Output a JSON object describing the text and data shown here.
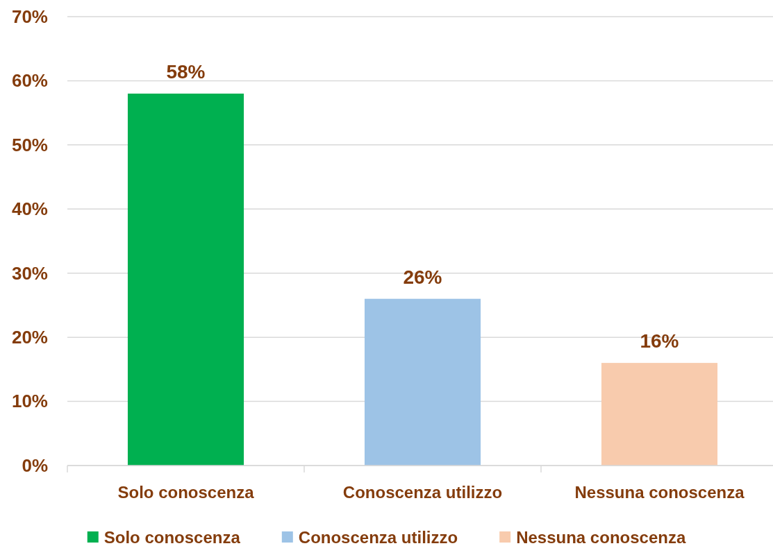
{
  "chart_data": {
    "type": "bar",
    "categories": [
      "Solo conoscenza",
      "Conoscenza utilizzo",
      "Nessuna conoscenza"
    ],
    "series": [
      {
        "name": "Solo conoscenza",
        "color": "#00b050",
        "values": [
          58,
          null,
          null
        ],
        "value_labels": [
          "58%",
          null,
          null
        ]
      },
      {
        "name": "Conoscenza utilizzo",
        "color": "#9dc3e6",
        "values": [
          null,
          26,
          null
        ],
        "value_labels": [
          null,
          "26%",
          null
        ]
      },
      {
        "name": "Nessuna conoscenza",
        "color": "#f8cbad",
        "values": [
          null,
          null,
          16
        ],
        "value_labels": [
          null,
          null,
          "16%"
        ]
      }
    ],
    "ylim": [
      0,
      70
    ],
    "yticks": [
      {
        "value": 0,
        "label": "0%"
      },
      {
        "value": 10,
        "label": "10%"
      },
      {
        "value": 20,
        "label": "20%"
      },
      {
        "value": 30,
        "label": "30%"
      },
      {
        "value": 40,
        "label": "40%"
      },
      {
        "value": 50,
        "label": "50%"
      },
      {
        "value": 60,
        "label": "60%"
      },
      {
        "value": 70,
        "label": "70%"
      }
    ],
    "grid": "y",
    "legend": "bottom"
  }
}
